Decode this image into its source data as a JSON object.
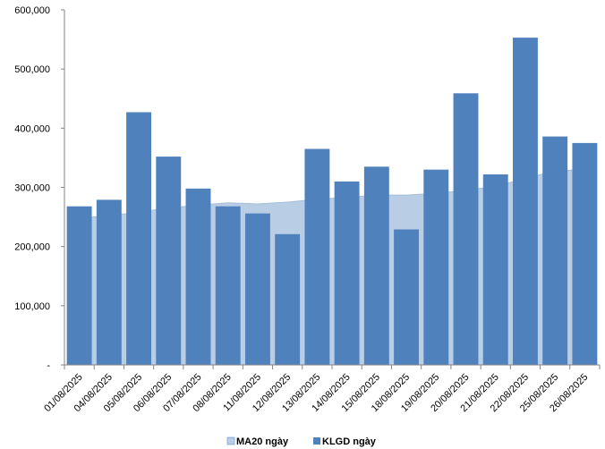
{
  "chart_data": {
    "type": "bar",
    "categories": [
      "01/08/2025",
      "04/08/2025",
      "05/08/2025",
      "06/08/2025",
      "07/08/2025",
      "08/08/2025",
      "11/08/2025",
      "12/08/2025",
      "13/08/2025",
      "14/08/2025",
      "15/08/2025",
      "18/08/2025",
      "19/08/2025",
      "20/08/2025",
      "21/08/2025",
      "22/08/2025",
      "25/08/2025",
      "26/08/2025"
    ],
    "series": [
      {
        "name": "MA20 ngày",
        "type": "area",
        "color": "#b9cde5",
        "values": [
          248000,
          252000,
          258000,
          265000,
          270000,
          274000,
          272000,
          275000,
          280000,
          283000,
          287000,
          287000,
          290000,
          295000,
          302000,
          315000,
          328000,
          330000
        ]
      },
      {
        "name": "KLGD ngày",
        "type": "bar",
        "color": "#4f81bd",
        "values": [
          268000,
          279000,
          427000,
          352000,
          298000,
          268000,
          256000,
          221000,
          365000,
          310000,
          335000,
          229000,
          330000,
          459000,
          322000,
          553000,
          386000,
          375000
        ]
      }
    ],
    "y_ticks": [
      "-",
      "100,000",
      "200,000",
      "300,000",
      "400,000",
      "500,000",
      "600,000"
    ],
    "ylim": [
      0,
      600000
    ],
    "grid": false,
    "legend_position": "bottom"
  }
}
